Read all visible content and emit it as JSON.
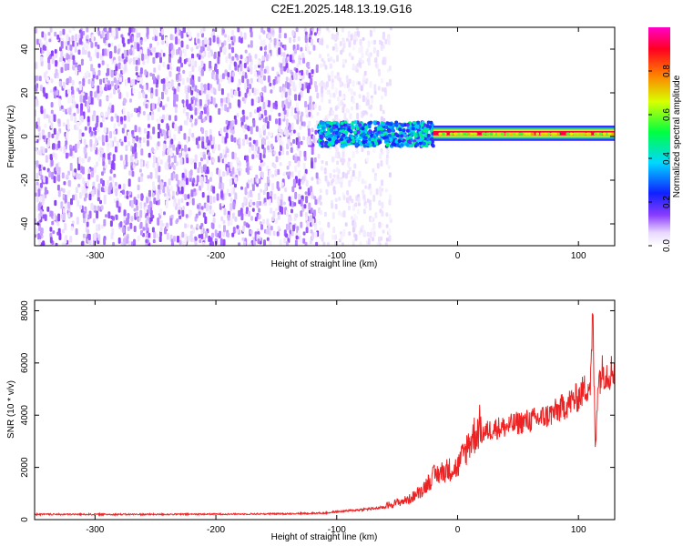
{
  "title": "C2E1.2025.148.13.19.G16",
  "colors": {
    "snr_line": "#ee2222",
    "spec_noise": "#6a00e8",
    "spec_signal": "#ff1a1a"
  },
  "chart_data": [
    {
      "type": "heatmap",
      "xlabel": "Height of straight line (km)",
      "ylabel": "Frequency (Hz)",
      "xlim": [
        -350,
        130
      ],
      "ylim": [
        -50,
        50
      ],
      "xticks": [
        -300,
        -200,
        -100,
        0,
        100
      ],
      "xtick_labels": [
        "-300",
        "-200",
        "-100",
        "0",
        "100"
      ],
      "yticks": [
        -40,
        -20,
        0,
        20,
        40
      ],
      "ytick_labels": [
        "-40",
        "-20",
        "0",
        "20",
        "40"
      ],
      "colorbar": {
        "label": "Normalized spectral amplitude",
        "range": [
          0,
          1
        ],
        "ticks": [
          0.0,
          0.2,
          0.4,
          0.6,
          0.8
        ],
        "tick_labels": [
          "0.0",
          "0.2",
          "0.4",
          "0.6",
          "0.8"
        ],
        "colormap": "rainbow (white-violet-blue-cyan-green-yellow-red-magenta)"
      },
      "regions": [
        {
          "x_range": [
            -350,
            -115
          ],
          "description_values": {
            "amplitude": 0.1,
            "freq_spread": [
              -50,
              50
            ]
          }
        },
        {
          "x_range": [
            -115,
            -55
          ],
          "description_values": {
            "amplitude": 0.05,
            "freq_spread": [
              -50,
              50
            ]
          }
        },
        {
          "x_range": [
            -115,
            -20
          ],
          "description_values": {
            "amplitude": 0.35,
            "freq_center": 1,
            "freq_spread": [
              -6,
              8
            ]
          }
        },
        {
          "x_range": [
            -20,
            130
          ],
          "description_values": {
            "amplitude": 1.0,
            "freq_center": 1,
            "freq_spread": [
              -2,
              3
            ]
          }
        }
      ],
      "grid": false
    },
    {
      "type": "line",
      "xlabel": "Height of straight line (km)",
      "ylabel": "SNR (10 * v/v)",
      "xlim": [
        -350,
        130
      ],
      "ylim": [
        0,
        8400
      ],
      "xticks": [
        -300,
        -200,
        -100,
        0,
        100
      ],
      "xtick_labels": [
        "-300",
        "-200",
        "-100",
        "0",
        "100"
      ],
      "yticks": [
        0,
        2000,
        4000,
        6000,
        8000
      ],
      "ytick_labels": [
        "0",
        "2000",
        "4000",
        "6000",
        "8000"
      ],
      "series": [
        {
          "x": [
            -350,
            -300,
            -250,
            -200,
            -150,
            -110,
            -100,
            -80,
            -60,
            -40,
            -30,
            -20,
            -10,
            0,
            10,
            20,
            30,
            40,
            50,
            60,
            70,
            80,
            90,
            100,
            105,
            110,
            112,
            114,
            116,
            118,
            120,
            125,
            130
          ],
          "y": [
            200,
            200,
            200,
            210,
            220,
            250,
            300,
            380,
            470,
            700,
            1000,
            1500,
            1700,
            1800,
            2700,
            3300,
            3500,
            3550,
            3700,
            3800,
            3900,
            4100,
            4400,
            4700,
            5000,
            5200,
            7800,
            2500,
            5300,
            5500,
            5700,
            5600,
            5800
          ]
        }
      ],
      "grid": false
    }
  ]
}
